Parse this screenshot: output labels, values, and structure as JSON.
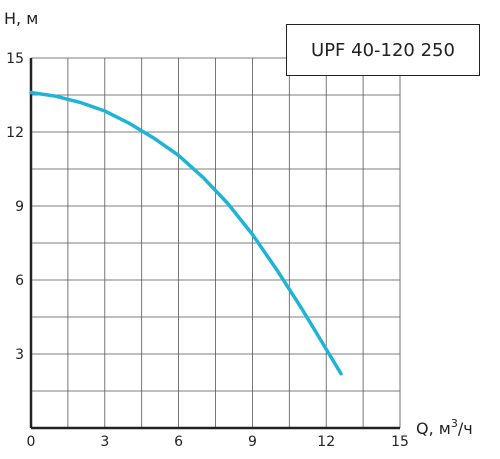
{
  "chart_data": {
    "type": "line",
    "title": "UPF 40-120 250",
    "ylabel": "H, м",
    "xlabel_prefix": "Q, м",
    "xlabel_sup": "3",
    "xlabel_suffix": "/ч",
    "xlim": [
      0,
      15
    ],
    "ylim": [
      0,
      15
    ],
    "xticks": [
      0,
      3,
      6,
      9,
      12,
      15
    ],
    "yticks": [
      3,
      6,
      9,
      12,
      15
    ],
    "grid": true,
    "line_color": "#1fb3d6",
    "series": [
      {
        "x": [
          0,
          1,
          2,
          3,
          4,
          5,
          6,
          7,
          8,
          9,
          10,
          11,
          12,
          12.6
        ],
        "y": [
          13.6,
          13.45,
          13.2,
          12.85,
          12.35,
          11.75,
          11.05,
          10.15,
          9.1,
          7.85,
          6.4,
          4.85,
          3.2,
          2.2
        ]
      }
    ]
  }
}
